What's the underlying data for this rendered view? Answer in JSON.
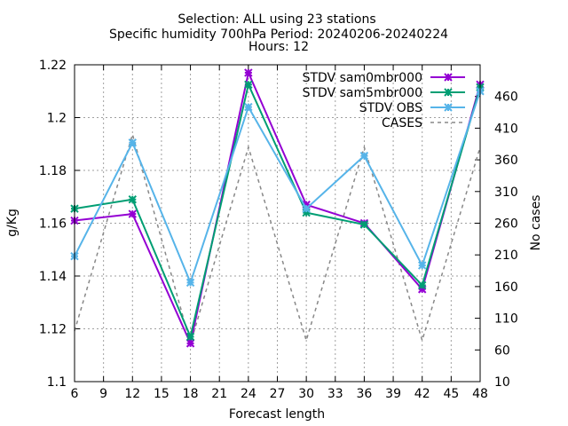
{
  "chart_data": {
    "type": "line",
    "title_lines": [
      "Selection: ALL using    23 stations",
      "Specific humidity 700hPa   Period: 20240206-20240224",
      "Hours: 12"
    ],
    "xlabel": "Forecast length",
    "ylabel": "g/Kg",
    "y2label": "No cases",
    "xlim": [
      6,
      48
    ],
    "ylim": [
      1.1,
      1.22
    ],
    "y2lim": [
      10,
      510
    ],
    "xticks": [
      6,
      9,
      12,
      15,
      18,
      21,
      24,
      27,
      30,
      33,
      36,
      39,
      42,
      45,
      48
    ],
    "yticks": [
      1.1,
      1.12,
      1.14,
      1.16,
      1.18,
      1.2,
      1.22
    ],
    "ytick_labels": [
      "1.1",
      "1.12",
      "1.14",
      "1.16",
      "1.18",
      "1.2",
      "1.22"
    ],
    "y2ticks": [
      10,
      60,
      110,
      160,
      210,
      260,
      310,
      360,
      410,
      460
    ],
    "grid": true,
    "legend_position": "top-right",
    "x": [
      6,
      12,
      18,
      24,
      30,
      36,
      42,
      48
    ],
    "series": [
      {
        "name": "STDV sam0mbr000",
        "axis": "y1",
        "color": "#9400d3",
        "marker": "x",
        "values": [
          1.161,
          1.1635,
          1.1145,
          1.217,
          1.167,
          1.16,
          1.135,
          1.2125
        ]
      },
      {
        "name": "STDV sam5mbr000",
        "axis": "y1",
        "color": "#009e73",
        "marker": "x",
        "values": [
          1.1655,
          1.169,
          1.117,
          1.2125,
          1.164,
          1.1595,
          1.1365,
          1.2115
        ]
      },
      {
        "name": "STDV OBS",
        "axis": "y1",
        "color": "#56b4e9",
        "marker": "x",
        "values": [
          1.1475,
          1.1905,
          1.1375,
          1.204,
          1.1655,
          1.1855,
          1.144,
          1.21
        ]
      },
      {
        "name": "CASES",
        "axis": "y2",
        "color": "#888888",
        "dash": true,
        "values": [
          90,
          400,
          70,
          380,
          75,
          380,
          75,
          380
        ]
      }
    ]
  }
}
